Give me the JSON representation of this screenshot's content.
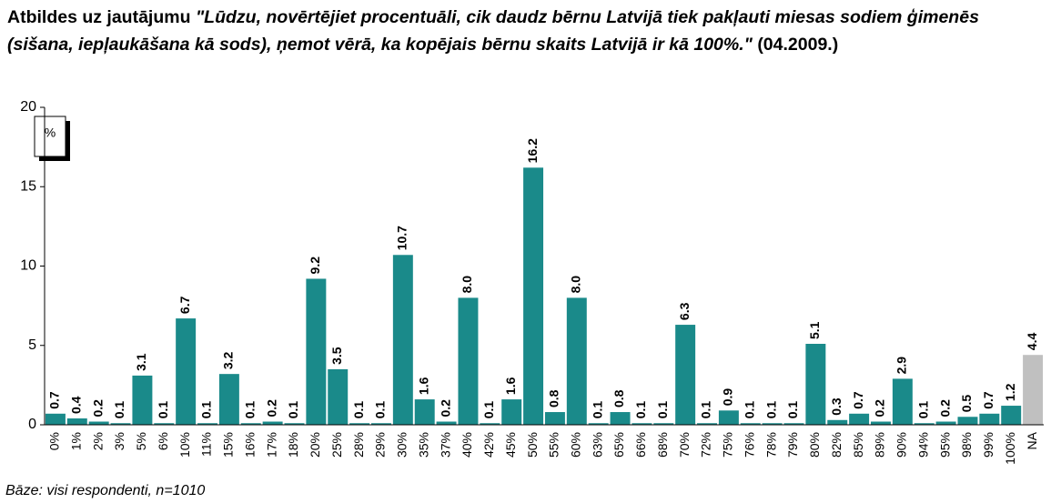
{
  "chart_data": {
    "type": "bar",
    "title_prefix": "Atbildes uz jautājumu",
    "title_question": "\"Lūdzu, novērtējiet procentuāli, cik daudz bērnu Latvijā tiek pakļauti miesas sodiem ģimenēs (sišana, iepļaukāšana kā sods), ņemot vērā, ka kopējais bērnu skaits Latvijā ir kā 100%.\"",
    "title_suffix": "(04.2009.)",
    "y_unit": "%",
    "footnote": "Bāze: visi respondenti, n=1010",
    "categories": [
      "0%",
      "1%",
      "2%",
      "3%",
      "5%",
      "6%",
      "10%",
      "11%",
      "15%",
      "16%",
      "17%",
      "18%",
      "20%",
      "25%",
      "28%",
      "29%",
      "30%",
      "35%",
      "37%",
      "40%",
      "42%",
      "45%",
      "50%",
      "55%",
      "60%",
      "63%",
      "65%",
      "66%",
      "68%",
      "70%",
      "72%",
      "75%",
      "76%",
      "78%",
      "79%",
      "80%",
      "82%",
      "85%",
      "89%",
      "90%",
      "94%",
      "95%",
      "98%",
      "99%",
      "100%",
      "NA"
    ],
    "values": [
      0.7,
      0.4,
      0.2,
      0.1,
      3.1,
      0.1,
      6.7,
      0.1,
      3.2,
      0.1,
      0.2,
      0.1,
      9.2,
      3.5,
      0.1,
      0.1,
      10.7,
      1.6,
      0.2,
      8.0,
      0.1,
      1.6,
      16.2,
      0.8,
      8.0,
      0.1,
      0.8,
      0.1,
      0.1,
      6.3,
      0.1,
      0.9,
      0.1,
      0.1,
      0.1,
      5.1,
      0.3,
      0.7,
      0.2,
      2.9,
      0.1,
      0.2,
      0.5,
      0.7,
      1.2,
      4.4
    ],
    "value_labels": [
      "0.7",
      "0.4",
      "0.2",
      "0.1",
      "3.1",
      "0.1",
      "6.7",
      "0.1",
      "3.2",
      "0.1",
      "0.2",
      "0.1",
      "9.2",
      "3.5",
      "0.1",
      "0.1",
      "10.7",
      "1.6",
      "0.2",
      "8.0",
      "0.1",
      "1.6",
      "16.2",
      "0.8",
      "8.0",
      "0.1",
      "0.8",
      "0.1",
      "0.1",
      "6.3",
      "0.1",
      "0.9",
      "0.1",
      "0.1",
      "0.1",
      "5.1",
      "0.3",
      "0.7",
      "0.2",
      "2.9",
      "0.1",
      "0.2",
      "0.5",
      "0.7",
      "1.2",
      "4.4"
    ],
    "colors": [
      "#1a8a8a",
      "#1a8a8a",
      "#1a8a8a",
      "#1a8a8a",
      "#1a8a8a",
      "#1a8a8a",
      "#1a8a8a",
      "#1a8a8a",
      "#1a8a8a",
      "#1a8a8a",
      "#1a8a8a",
      "#1a8a8a",
      "#1a8a8a",
      "#1a8a8a",
      "#1a8a8a",
      "#1a8a8a",
      "#1a8a8a",
      "#1a8a8a",
      "#1a8a8a",
      "#1a8a8a",
      "#1a8a8a",
      "#1a8a8a",
      "#1a8a8a",
      "#1a8a8a",
      "#1a8a8a",
      "#1a8a8a",
      "#1a8a8a",
      "#1a8a8a",
      "#1a8a8a",
      "#1a8a8a",
      "#1a8a8a",
      "#1a8a8a",
      "#1a8a8a",
      "#1a8a8a",
      "#1a8a8a",
      "#1a8a8a",
      "#1a8a8a",
      "#1a8a8a",
      "#1a8a8a",
      "#1a8a8a",
      "#1a8a8a",
      "#1a8a8a",
      "#1a8a8a",
      "#1a8a8a",
      "#1a8a8a",
      "#c0c0c0"
    ],
    "ylim": [
      0,
      20
    ],
    "yticks": [
      0,
      5,
      10,
      15,
      20
    ],
    "grid": false
  }
}
